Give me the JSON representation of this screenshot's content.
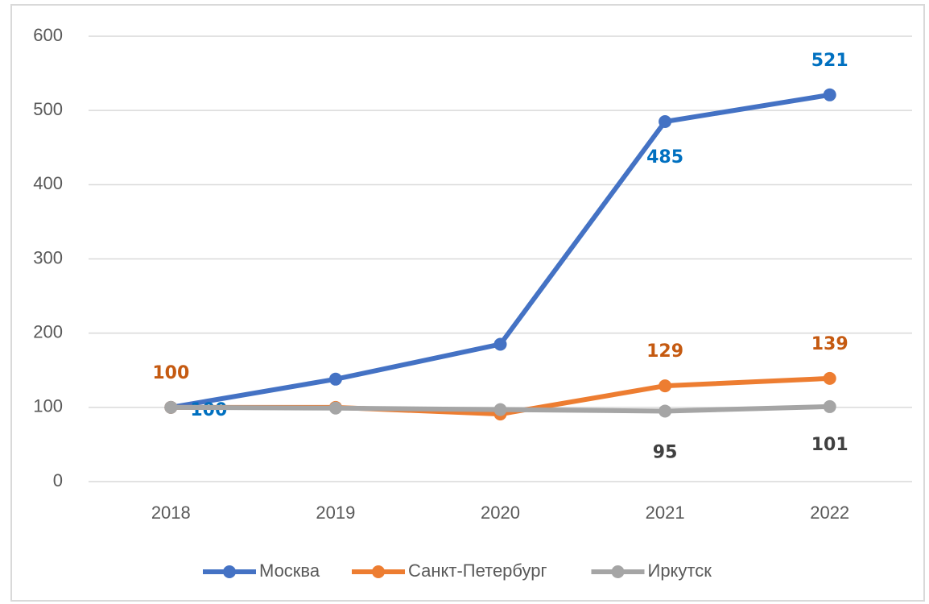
{
  "chart_data": {
    "type": "line",
    "categories": [
      "2018",
      "2019",
      "2020",
      "2021",
      "2022"
    ],
    "series": [
      {
        "name": "Москва",
        "color": "#4472c4",
        "label_color": "#0070c0",
        "values": [
          100,
          138,
          185,
          485,
          521
        ],
        "value_labels": [
          "100",
          null,
          null,
          "485",
          "521"
        ]
      },
      {
        "name": "Санкт-Петербург",
        "color": "#ed7d31",
        "label_color": "#c55a11",
        "values": [
          100,
          100,
          91,
          129,
          139
        ],
        "value_labels": [
          "100",
          null,
          null,
          "129",
          "139"
        ]
      },
      {
        "name": "Иркутск",
        "color": "#a5a5a5",
        "label_color": "#404040",
        "values": [
          100,
          99,
          97,
          95,
          101
        ],
        "value_labels": [
          null,
          null,
          null,
          "95",
          "101"
        ]
      }
    ],
    "ylim": [
      0,
      600
    ],
    "yticks": [
      0,
      100,
      200,
      300,
      400,
      500,
      600
    ],
    "grid": true,
    "legend": "bottom"
  }
}
